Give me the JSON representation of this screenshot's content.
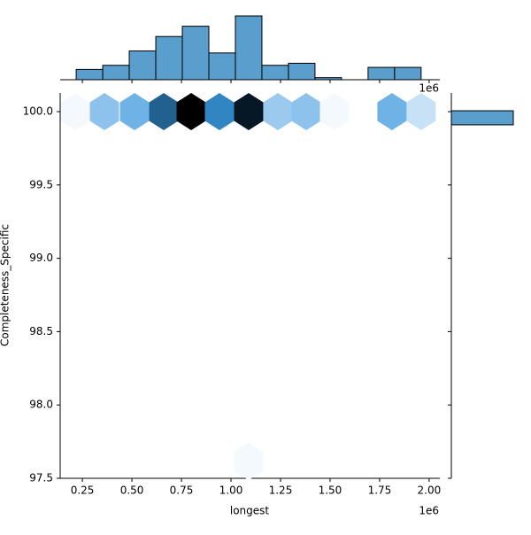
{
  "chart_data": {
    "type": "hexbin",
    "x_label": "longest",
    "y_label": "Completeness_Specific",
    "x_offset_label": "1e6",
    "xlim": [
      138000,
      2054000
    ],
    "ylim": [
      97.5,
      100.127
    ],
    "xticks": [
      {
        "value": 250000,
        "label": "0.25"
      },
      {
        "value": 500000,
        "label": "0.50"
      },
      {
        "value": 750000,
        "label": "0.75"
      },
      {
        "value": 1000000,
        "label": "1.00"
      },
      {
        "value": 1250000,
        "label": "1.25"
      },
      {
        "value": 1500000,
        "label": "1.50"
      },
      {
        "value": 1750000,
        "label": "1.75"
      },
      {
        "value": 2000000,
        "label": "2.00"
      }
    ],
    "yticks": [
      97.5,
      {
        "value": 98,
        "label": "98.0"
      },
      98.5,
      {
        "value": 99,
        "label": "99.0"
      },
      99.5,
      {
        "value": 100,
        "label": "100.0"
      }
    ],
    "hexbins": {
      "x": [
        214300,
        361600,
        513400,
        660700,
        799100,
        941900,
        1089200,
        1236500,
        1379400,
        1522200,
        1812400,
        1959700,
        1089200
      ],
      "y": [
        100,
        100,
        100,
        100,
        100,
        100,
        100,
        100,
        100,
        100,
        100,
        100,
        97.615
      ],
      "counts": [
        1,
        8,
        10,
        18,
        26,
        15,
        24,
        7,
        8,
        1,
        10,
        4,
        1
      ]
    },
    "color": "#5a9ecd",
    "marginal_x": {
      "bins": [
        218800,
        352700,
        486600,
        620500,
        754400,
        888300,
        1022200,
        1156100,
        1290000,
        1423900,
        1557800,
        1691700,
        1825600,
        1959500
      ],
      "counts": [
        5,
        7,
        14,
        21,
        26,
        13,
        31,
        7,
        8,
        1,
        0,
        6,
        6
      ]
    },
    "marginal_y": {
      "bins": [
        99.91,
        100.006
      ],
      "counts": [
        144
      ]
    }
  }
}
